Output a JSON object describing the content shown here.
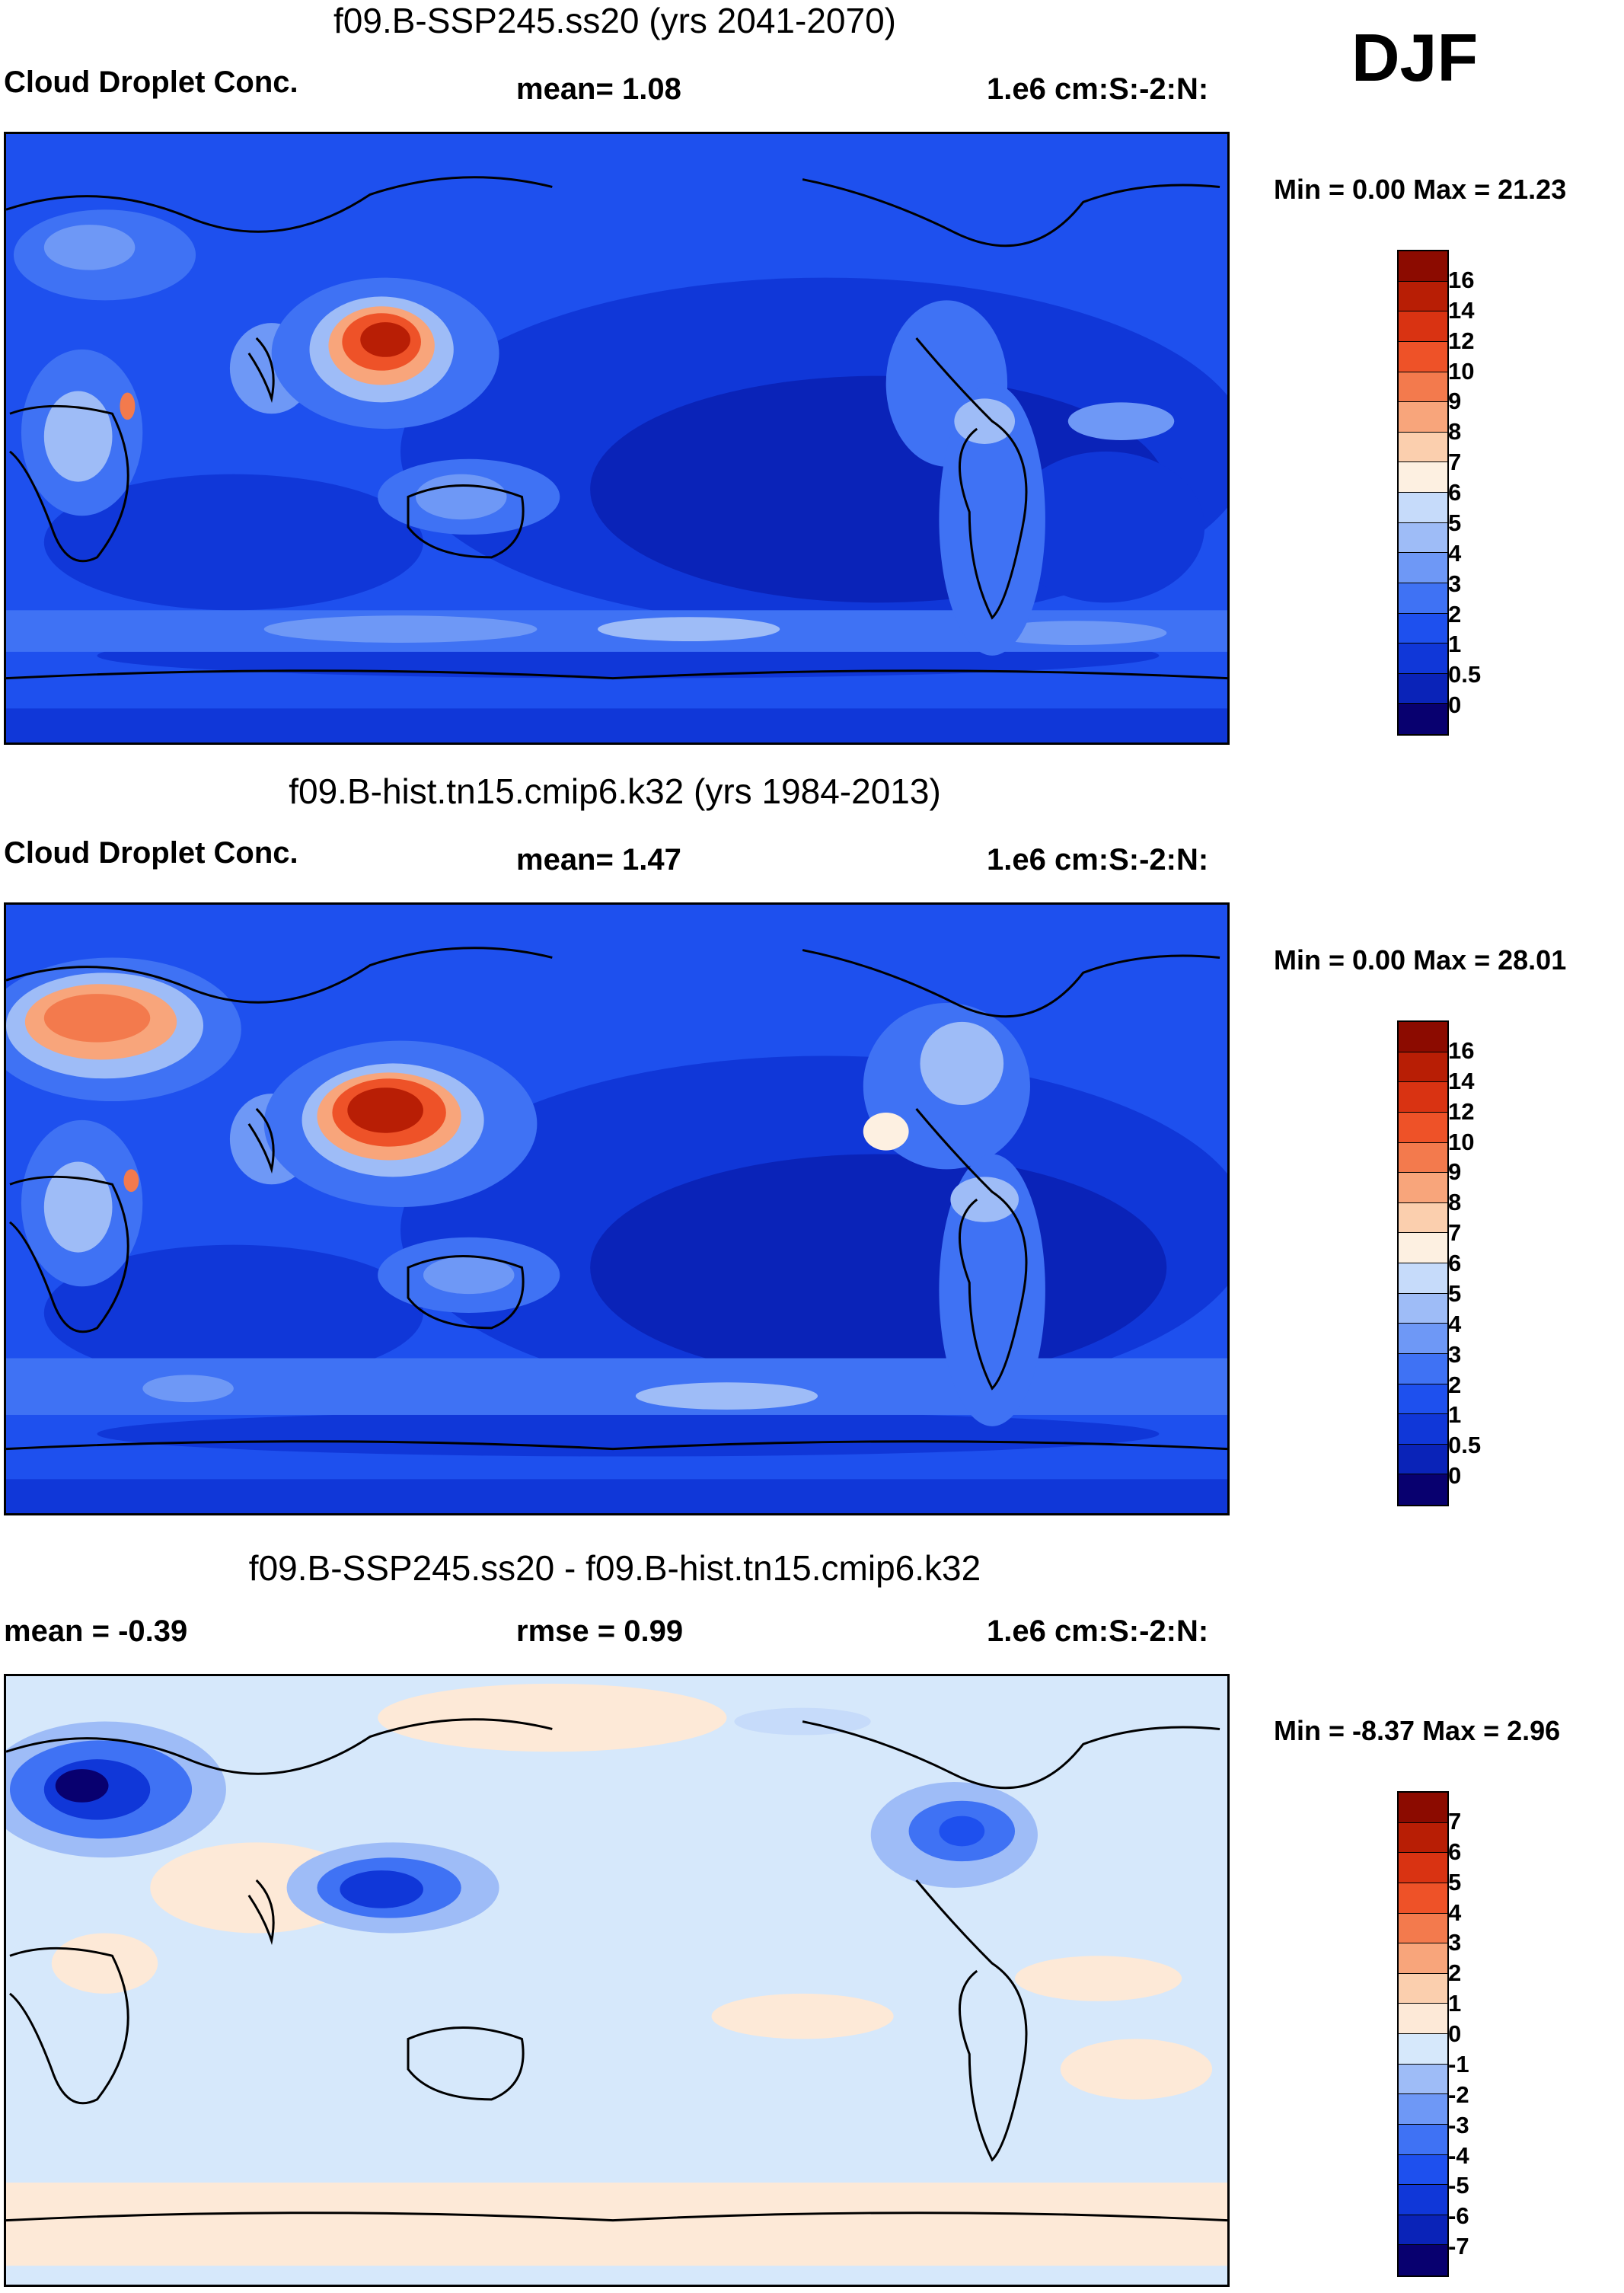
{
  "season": "DJF",
  "colors": {
    "absolute": [
      "#08006f",
      "#0a23b8",
      "#1037d8",
      "#1e50ee",
      "#3f72f4",
      "#6e98f6",
      "#9ebcf7",
      "#c6dbfa",
      "#fdf0e1",
      "#fbcfae",
      "#f8a57b",
      "#f37a4d",
      "#ee5228",
      "#d93312",
      "#b81e05",
      "#8c0b00"
    ],
    "difference": [
      "#08006f",
      "#0a23b8",
      "#1037d8",
      "#1e50ee",
      "#3f72f4",
      "#6e98f6",
      "#9ebcf7",
      "#d6e8fb",
      "#fde9d7",
      "#fbcfae",
      "#f8a57b",
      "#f37a4d",
      "#ee5228",
      "#d93312",
      "#b81e05",
      "#8c0b00"
    ]
  },
  "panels": [
    {
      "title": "f09.B-SSP245.ss20 (yrs 2041-2070)",
      "left_label": "Cloud Droplet Conc.",
      "center_label": "mean=   1.08",
      "right_label": "1.e6 cm:S:-2:N:",
      "minmax": "Min =   0.00 Max =  21.23",
      "colorbar_ticks": [
        "16",
        "14",
        "12",
        "10",
        "9",
        "8",
        "7",
        "6",
        "5",
        "4",
        "3",
        "2",
        "1",
        "0.5",
        "0"
      ],
      "scheme": "absolute"
    },
    {
      "title": "f09.B-hist.tn15.cmip6.k32 (yrs 1984-2013)",
      "left_label": "Cloud Droplet Conc.",
      "center_label": "mean=   1.47",
      "right_label": "1.e6 cm:S:-2:N:",
      "minmax": "Min =   0.00 Max =  28.01",
      "colorbar_ticks": [
        "16",
        "14",
        "12",
        "10",
        "9",
        "8",
        "7",
        "6",
        "5",
        "4",
        "3",
        "2",
        "1",
        "0.5",
        "0"
      ],
      "scheme": "absolute"
    },
    {
      "title": "f09.B-SSP245.ss20 - f09.B-hist.tn15.cmip6.k32",
      "left_label": "mean =  -0.39",
      "center_label": "rmse =   0.99",
      "right_label": "1.e6 cm:S:-2:N:",
      "minmax": "Min =  -8.37 Max =   2.96",
      "colorbar_ticks": [
        "7",
        "6",
        "5",
        "4",
        "3",
        "2",
        "1",
        "0",
        "-1",
        "-2",
        "-3",
        "-4",
        "-5",
        "-6",
        "-7"
      ],
      "scheme": "difference"
    }
  ]
}
